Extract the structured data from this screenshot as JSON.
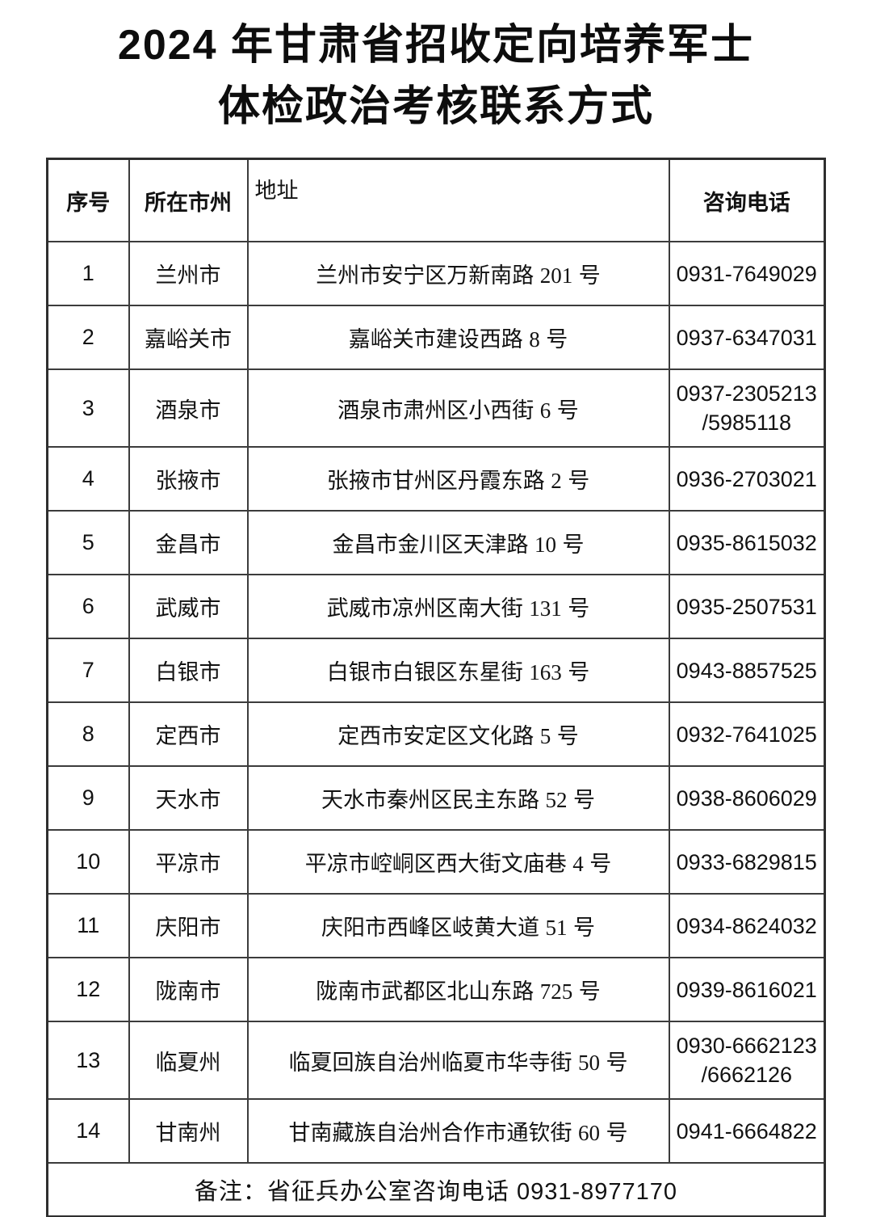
{
  "title": {
    "line1": "2024 年甘肃省招收定向培养军士",
    "line2": "体检政治考核联系方式"
  },
  "table": {
    "headers": [
      "序号",
      "所在市州",
      "地址",
      "咨询电话"
    ],
    "rows": [
      {
        "seq": "1",
        "city": "兰州市",
        "address": "兰州市安宁区万新南路 201 号",
        "phone_lines": [
          "0931-7649029"
        ]
      },
      {
        "seq": "2",
        "city": "嘉峪关市",
        "address": "嘉峪关市建设西路 8 号",
        "phone_lines": [
          "0937-6347031"
        ]
      },
      {
        "seq": "3",
        "city": "酒泉市",
        "address": "酒泉市肃州区小西街 6 号",
        "phone_lines": [
          "0937-2305213",
          "/5985118"
        ]
      },
      {
        "seq": "4",
        "city": "张掖市",
        "address": "张掖市甘州区丹霞东路 2 号",
        "phone_lines": [
          "0936-2703021"
        ]
      },
      {
        "seq": "5",
        "city": "金昌市",
        "address": "金昌市金川区天津路 10 号",
        "phone_lines": [
          "0935-8615032"
        ]
      },
      {
        "seq": "6",
        "city": "武威市",
        "address": "武威市凉州区南大街 131 号",
        "phone_lines": [
          "0935-2507531"
        ]
      },
      {
        "seq": "7",
        "city": "白银市",
        "address": "白银市白银区东星街 163 号",
        "phone_lines": [
          "0943-8857525"
        ]
      },
      {
        "seq": "8",
        "city": "定西市",
        "address": "定西市安定区文化路 5 号",
        "phone_lines": [
          "0932-7641025"
        ]
      },
      {
        "seq": "9",
        "city": "天水市",
        "address": "天水市秦州区民主东路 52 号",
        "phone_lines": [
          "0938-8606029"
        ]
      },
      {
        "seq": "10",
        "city": "平凉市",
        "address": "平凉市崆峒区西大街文庙巷 4 号",
        "phone_lines": [
          "0933-6829815"
        ]
      },
      {
        "seq": "11",
        "city": "庆阳市",
        "address": "庆阳市西峰区岐黄大道 51 号",
        "phone_lines": [
          "0934-8624032"
        ]
      },
      {
        "seq": "12",
        "city": "陇南市",
        "address": "陇南市武都区北山东路 725 号",
        "phone_lines": [
          "0939-8616021"
        ]
      },
      {
        "seq": "13",
        "city": "临夏州",
        "address": "临夏回族自治州临夏市华寺街 50 号",
        "phone_lines": [
          "0930-6662123",
          "/6662126"
        ]
      },
      {
        "seq": "14",
        "city": "甘南州",
        "address": "甘南藏族自治州合作市通钦街 60 号",
        "phone_lines": [
          "0941-6664822"
        ]
      }
    ],
    "footer_note": "备注：省征兵办公室咨询电话 0931-8977170"
  },
  "colors": {
    "background": "#ffffff",
    "text": "#111111",
    "border": "#3c3c3c"
  }
}
